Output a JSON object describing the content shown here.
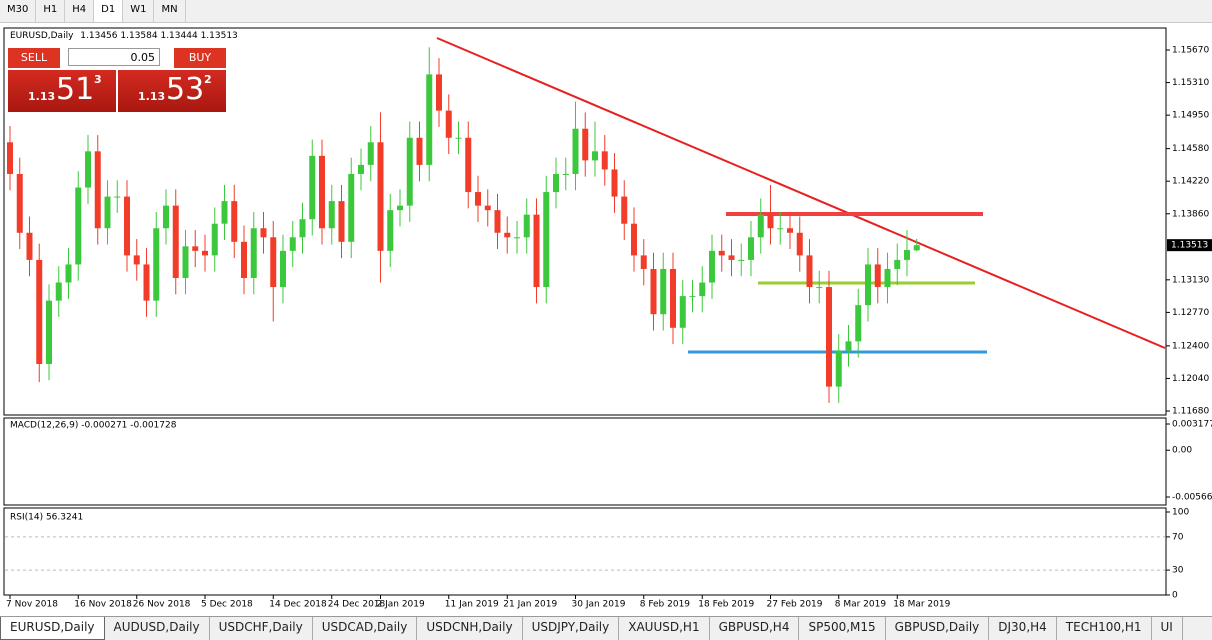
{
  "toolbar": {
    "timeframes": [
      "M30",
      "H1",
      "H4",
      "D1",
      "W1",
      "MN"
    ],
    "active": "D1"
  },
  "header": {
    "symbol": "EURUSD,Daily",
    "ohlc": [
      "1.13456",
      "1.13584",
      "1.13444",
      "1.13513"
    ]
  },
  "trade_panel": {
    "sell": "SELL",
    "buy": "BUY",
    "volume": "0.05",
    "bid": {
      "big": "1.13",
      "pips": "51",
      "fraction": "3"
    },
    "ask": {
      "big": "1.13",
      "pips": "53",
      "fraction": "2"
    }
  },
  "chart_data": {
    "type": "candlestick",
    "categories": [
      "7 Nov 2018",
      null,
      null,
      null,
      null,
      null,
      null,
      "16 Nov 2018",
      null,
      null,
      null,
      null,
      null,
      "26 Nov 2018",
      null,
      null,
      null,
      null,
      null,
      null,
      "5 Dec 2018",
      null,
      null,
      null,
      null,
      null,
      null,
      "14 Dec 2018",
      null,
      null,
      null,
      null,
      null,
      "24 Dec 2018",
      null,
      null,
      null,
      null,
      "2 Jan 2019",
      null,
      null,
      null,
      null,
      null,
      null,
      "11 Jan 2019",
      null,
      null,
      null,
      null,
      null,
      "21 Jan 2019",
      null,
      null,
      null,
      null,
      null,
      null,
      "30 Jan 2019",
      null,
      null,
      null,
      null,
      null,
      null,
      "8 Feb 2019",
      null,
      null,
      null,
      null,
      null,
      "18 Feb 2019",
      null,
      null,
      null,
      null,
      null,
      null,
      "27 Feb 2019",
      null,
      null,
      null,
      null,
      null,
      null,
      "8 Mar 2019",
      null,
      null,
      null,
      null,
      null,
      "18 Mar 2019",
      null,
      null
    ],
    "open": [
      1.1465,
      1.143,
      1.1365,
      1.1335,
      1.122,
      1.129,
      1.131,
      1.133,
      1.1415,
      1.1455,
      1.137,
      1.1405,
      1.1405,
      1.134,
      1.133,
      1.129,
      1.137,
      1.1395,
      1.1315,
      1.135,
      1.1345,
      1.134,
      1.1375,
      1.14,
      1.1355,
      1.1315,
      1.137,
      1.136,
      1.1305,
      1.1345,
      1.136,
      1.138,
      1.145,
      1.137,
      1.14,
      1.1355,
      1.143,
      1.144,
      1.1465,
      1.1345,
      1.139,
      1.1395,
      1.147,
      1.144,
      1.154,
      1.15,
      1.147,
      1.147,
      1.141,
      1.1395,
      1.139,
      1.1365,
      1.136,
      1.136,
      1.1385,
      1.1305,
      1.141,
      1.143,
      1.143,
      1.148,
      1.1445,
      1.1455,
      1.1435,
      1.1405,
      1.1375,
      1.134,
      1.1325,
      1.1275,
      1.1325,
      1.126,
      1.1295,
      1.1295,
      1.131,
      1.1345,
      1.134,
      1.1335,
      1.1335,
      1.136,
      1.1385,
      1.137,
      1.137,
      1.1365,
      1.134,
      1.1305,
      1.1305,
      1.1195,
      1.1235,
      1.1245,
      1.1285,
      1.133,
      1.1305,
      1.1325,
      1.1335,
      1.13456
    ],
    "high": [
      1.1483,
      1.1448,
      1.1383,
      1.1353,
      1.1308,
      1.1328,
      1.1348,
      1.1433,
      1.1473,
      1.1473,
      1.1423,
      1.1423,
      1.1423,
      1.1358,
      1.1348,
      1.1388,
      1.1413,
      1.1413,
      1.1368,
      1.1368,
      1.1363,
      1.1393,
      1.1418,
      1.1418,
      1.1373,
      1.1388,
      1.1388,
      1.1378,
      1.1363,
      1.1378,
      1.1398,
      1.1468,
      1.1468,
      1.1418,
      1.1418,
      1.1448,
      1.1458,
      1.1483,
      1.1498,
      1.1408,
      1.1413,
      1.1488,
      1.1488,
      1.157,
      1.1558,
      1.1518,
      1.1488,
      1.1488,
      1.1428,
      1.1413,
      1.1408,
      1.1383,
      1.1378,
      1.1403,
      1.1403,
      1.1428,
      1.1448,
      1.1448,
      1.151,
      1.1498,
      1.1488,
      1.1473,
      1.1453,
      1.1423,
      1.1393,
      1.1358,
      1.1343,
      1.1343,
      1.1343,
      1.1313,
      1.1313,
      1.1328,
      1.1363,
      1.1363,
      1.1358,
      1.1353,
      1.1378,
      1.1403,
      1.1418,
      1.1388,
      1.1388,
      1.1383,
      1.1358,
      1.1323,
      1.1323,
      1.1253,
      1.1263,
      1.1303,
      1.1348,
      1.1348,
      1.1343,
      1.1353,
      1.1368,
      1.13584
    ],
    "low": [
      1.1412,
      1.1347,
      1.1317,
      1.12,
      1.1202,
      1.1272,
      1.1292,
      1.1312,
      1.1397,
      1.1352,
      1.1352,
      1.1387,
      1.1322,
      1.1312,
      1.1272,
      1.1272,
      1.1352,
      1.1297,
      1.1297,
      1.1327,
      1.1322,
      1.1322,
      1.1357,
      1.1337,
      1.1297,
      1.1297,
      1.1342,
      1.1267,
      1.1287,
      1.1327,
      1.1342,
      1.1362,
      1.1352,
      1.1352,
      1.1337,
      1.1337,
      1.1412,
      1.1422,
      1.131,
      1.1327,
      1.1372,
      1.1377,
      1.1422,
      1.1422,
      1.1482,
      1.1452,
      1.1452,
      1.1392,
      1.1377,
      1.1372,
      1.1347,
      1.1342,
      1.1342,
      1.1342,
      1.1287,
      1.1287,
      1.1392,
      1.1412,
      1.1412,
      1.1427,
      1.1427,
      1.1417,
      1.1387,
      1.1357,
      1.1322,
      1.1307,
      1.1257,
      1.1257,
      1.1242,
      1.1242,
      1.1277,
      1.1277,
      1.1292,
      1.1322,
      1.1317,
      1.1317,
      1.1317,
      1.1342,
      1.1352,
      1.1352,
      1.1347,
      1.1322,
      1.1287,
      1.1287,
      1.1177,
      1.1177,
      1.1217,
      1.1227,
      1.1267,
      1.1287,
      1.1287,
      1.1307,
      1.1317,
      1.13444
    ],
    "close": [
      1.143,
      1.1365,
      1.1335,
      1.122,
      1.129,
      1.131,
      1.133,
      1.1415,
      1.1455,
      1.137,
      1.1405,
      1.1405,
      1.134,
      1.133,
      1.129,
      1.137,
      1.1395,
      1.1315,
      1.135,
      1.1345,
      1.134,
      1.1375,
      1.14,
      1.1355,
      1.1315,
      1.137,
      1.136,
      1.1305,
      1.1345,
      1.136,
      1.138,
      1.145,
      1.137,
      1.14,
      1.1355,
      1.143,
      1.144,
      1.1465,
      1.1345,
      1.139,
      1.1395,
      1.147,
      1.144,
      1.154,
      1.15,
      1.147,
      1.147,
      1.141,
      1.1395,
      1.139,
      1.1365,
      1.136,
      1.136,
      1.1385,
      1.1305,
      1.141,
      1.143,
      1.143,
      1.148,
      1.1445,
      1.1455,
      1.1435,
      1.1405,
      1.1375,
      1.134,
      1.1325,
      1.1275,
      1.1325,
      1.126,
      1.1295,
      1.1295,
      1.131,
      1.1345,
      1.134,
      1.1335,
      1.1335,
      1.136,
      1.1385,
      1.137,
      1.137,
      1.1365,
      1.134,
      1.1305,
      1.1305,
      1.1195,
      1.1235,
      1.1245,
      1.1285,
      1.133,
      1.1305,
      1.1325,
      1.1335,
      1.1346,
      1.13513
    ],
    "up_color": "#3cc83c",
    "down_color": "#f03c28",
    "ylim": [
      1.11636,
      1.15891
    ],
    "yticks": [
      {
        "value": 1.1567,
        "label": "1.15670"
      },
      {
        "value": 1.1531,
        "label": "1.15310"
      },
      {
        "value": 1.1495,
        "label": "1.14950"
      },
      {
        "value": 1.1458,
        "label": "1.14580"
      },
      {
        "value": 1.1422,
        "label": "1.14220"
      },
      {
        "value": 1.1386,
        "label": "1.13860"
      },
      {
        "value": 1.1313,
        "label": "1.13130"
      },
      {
        "value": 1.1277,
        "label": "1.12770"
      },
      {
        "value": 1.124,
        "label": "1.12400"
      },
      {
        "value": 1.1204,
        "label": "1.12040"
      },
      {
        "value": 1.1168,
        "label": "1.11680"
      }
    ],
    "last_price": {
      "value": 1.13513,
      "label": "1.13513"
    }
  },
  "indicators": {
    "macd": {
      "label": "MACD(12,26,9) -0.000271 -0.001728",
      "ylim": [
        -0.005667,
        0.003177
      ],
      "yticks": [
        0.003177,
        {
          "value": 0,
          "label": "0.00"
        },
        -0.005667
      ]
    },
    "rsi": {
      "label": "RSI(14) 56.3241",
      "ylim": [
        0,
        100
      ],
      "yticks": [
        100,
        70,
        30,
        0
      ]
    }
  },
  "tabs": [
    "EURUSD,Daily",
    "AUDUSD,Daily",
    "USDCHF,Daily",
    "USDCAD,Daily",
    "USDCNH,Daily",
    "USDJPY,Daily",
    "XAUUSD,H1",
    "GBPUSD,H4",
    "SP500,M15",
    "GBPUSD,Daily",
    "DJ30,H4",
    "TECH100,H1",
    "UI"
  ]
}
